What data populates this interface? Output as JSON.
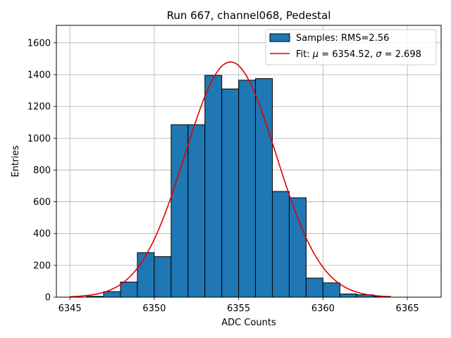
{
  "chart_data": {
    "type": "bar",
    "title": "Run 667, channel068, Pedestal",
    "xlabel": "ADC Counts",
    "ylabel": "Entries",
    "xlim": [
      6344.2,
      6367.0
    ],
    "ylim": [
      0,
      1710
    ],
    "xticks": [
      6345,
      6350,
      6355,
      6360,
      6365
    ],
    "yticks": [
      0,
      200,
      400,
      600,
      800,
      1000,
      1200,
      1400,
      1600
    ],
    "grid": true,
    "legend_position": "upper-right",
    "bin_edges": [
      6345,
      6346,
      6347,
      6348,
      6349,
      6350,
      6351,
      6352,
      6353,
      6354,
      6355,
      6356,
      6357,
      6358,
      6359,
      6360,
      6361,
      6362,
      6363,
      6364,
      6365,
      6366
    ],
    "counts": [
      0,
      5,
      35,
      95,
      280,
      255,
      1085,
      1085,
      1395,
      1310,
      1365,
      1375,
      665,
      625,
      120,
      90,
      20,
      15,
      5,
      0,
      0
    ],
    "series": [
      {
        "name": "Samples: RMS=2.56",
        "kind": "histogram",
        "color": "#1f77b4",
        "edgecolor": "#000000"
      },
      {
        "name": "Fit: μ = 6354.52, σ = 2.698",
        "kind": "gaussian-fit",
        "color": "#e00000",
        "mu": 6354.52,
        "sigma": 2.698,
        "amplitude": 1480,
        "x_range": [
          6345,
          6364
        ]
      }
    ],
    "legend": [
      {
        "label_prefix": "Samples: RMS=2.56",
        "kind": "patch"
      },
      {
        "label_prefix": "Fit:",
        "mu_symbol": "μ",
        "mu_text": " = 6354.52, ",
        "sigma_symbol": "σ",
        "sigma_text": " = 2.698",
        "kind": "line"
      }
    ]
  }
}
